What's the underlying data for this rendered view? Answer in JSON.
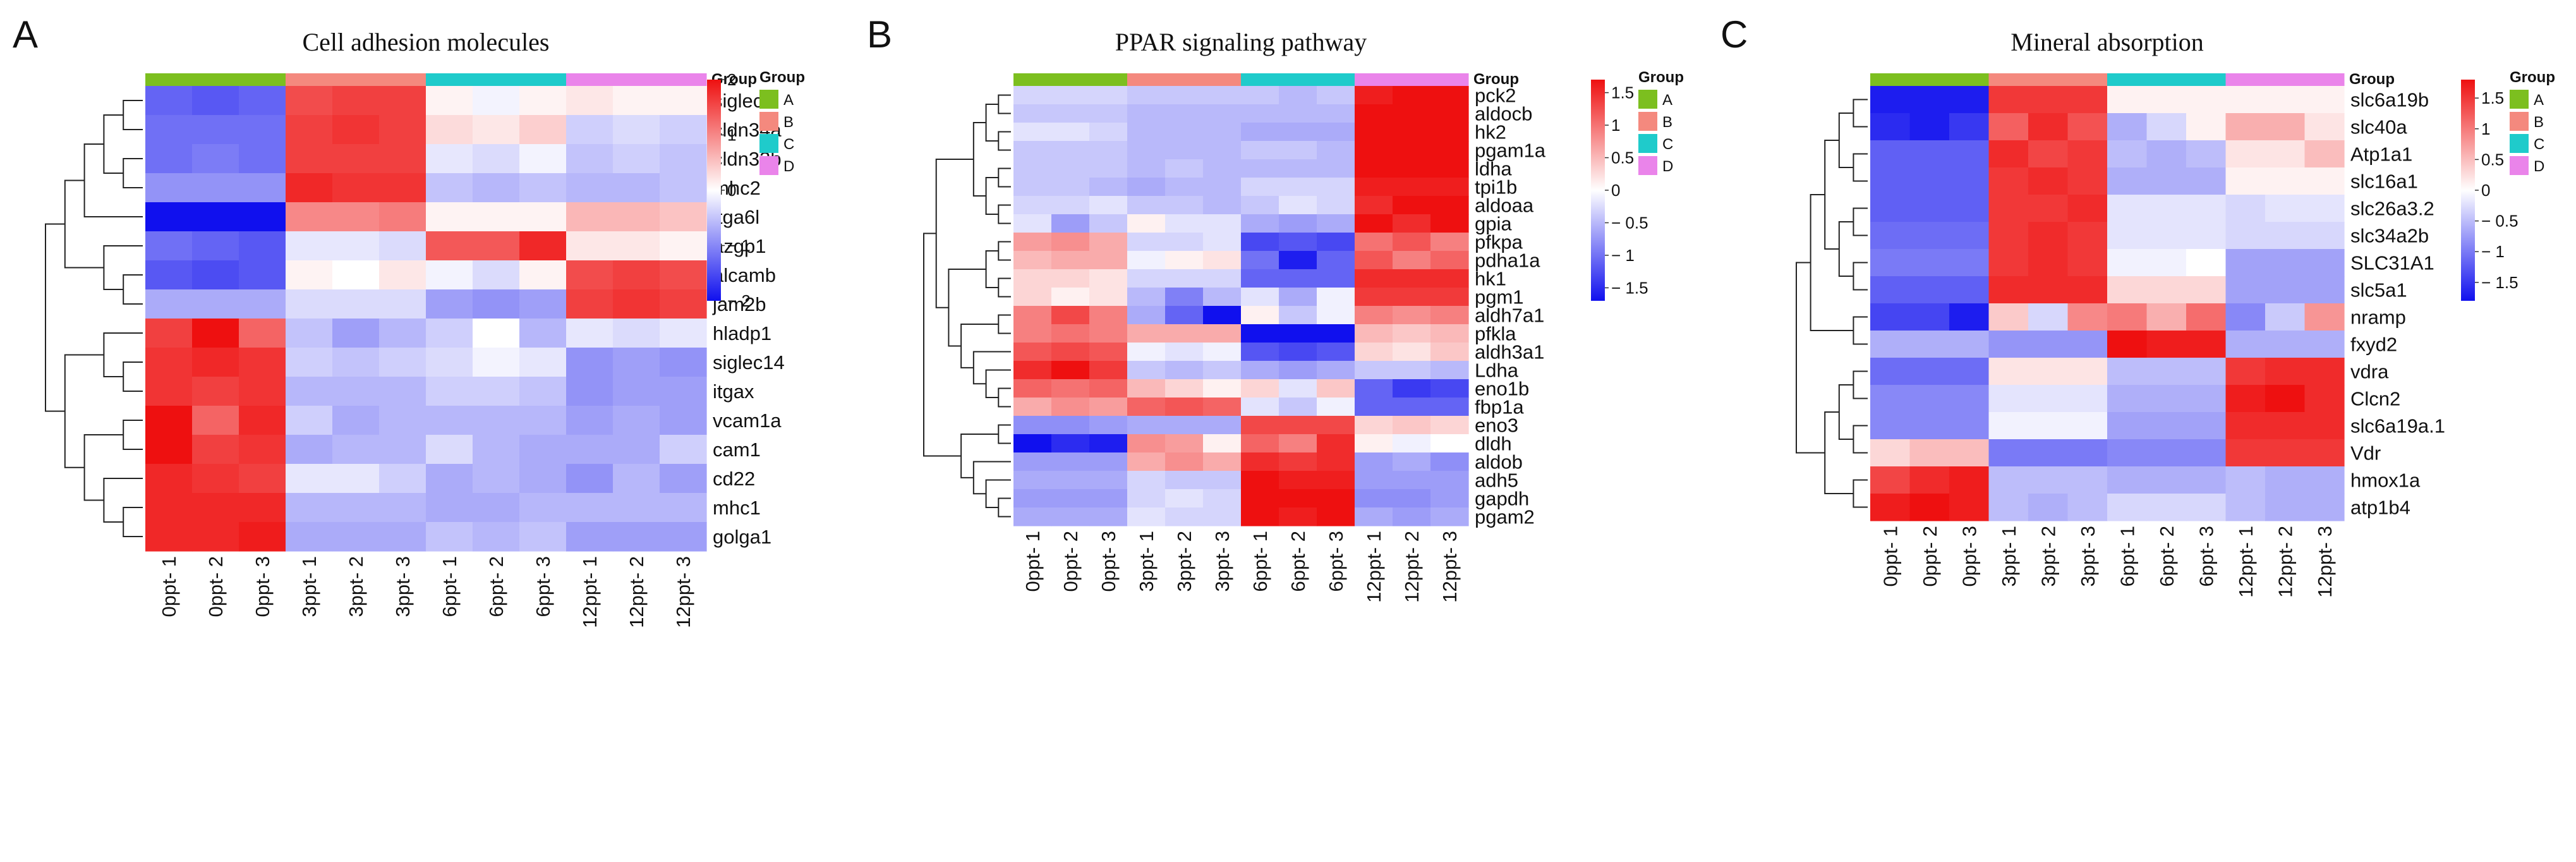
{
  "chart_data": [
    {
      "type": "heatmap",
      "panel": "A",
      "title": "Cell adhesion molecules",
      "columns": [
        "0ppt- 1",
        "0ppt- 2",
        "0ppt- 3",
        "3ppt- 1",
        "3ppt- 2",
        "3ppt- 3",
        "6ppt- 1",
        "6ppt- 2",
        "6ppt- 3",
        "12ppt- 1",
        "12ppt- 2",
        "12ppt- 3"
      ],
      "column_groups": [
        "A",
        "A",
        "A",
        "B",
        "B",
        "B",
        "C",
        "C",
        "C",
        "D",
        "D",
        "D"
      ],
      "group_bar_label": "Group",
      "rows": [
        "siglec1",
        "cldn34a",
        "cldn33b",
        "mhc2",
        "itga6l",
        "azgp1",
        "alcamb",
        "jam2b",
        "hladp1",
        "siglec14",
        "itgax",
        "vcam1a",
        "cam1",
        "cd22",
        "mhc1",
        "golga1"
      ],
      "values": [
        [
          -1.3,
          -1.4,
          -1.3,
          1.5,
          1.6,
          1.6,
          0.1,
          -0.1,
          0.1,
          0.2,
          0.1,
          0.1
        ],
        [
          -1.2,
          -1.2,
          -1.2,
          1.6,
          1.7,
          1.6,
          0.3,
          0.2,
          0.4,
          -0.4,
          -0.3,
          -0.4
        ],
        [
          -1.2,
          -1.1,
          -1.2,
          1.6,
          1.6,
          1.6,
          -0.2,
          -0.3,
          -0.1,
          -0.5,
          -0.4,
          -0.5
        ],
        [
          -0.9,
          -0.9,
          -0.9,
          1.8,
          1.7,
          1.7,
          -0.5,
          -0.6,
          -0.5,
          -0.6,
          -0.6,
          -0.5
        ],
        [
          -2.0,
          -2.0,
          -2.0,
          1.0,
          1.0,
          1.1,
          0.1,
          0.1,
          0.1,
          0.6,
          0.6,
          0.5
        ],
        [
          -1.2,
          -1.3,
          -1.4,
          -0.2,
          -0.2,
          -0.3,
          1.4,
          1.4,
          1.8,
          0.2,
          0.2,
          0.1
        ],
        [
          -1.4,
          -1.5,
          -1.4,
          0.1,
          0.0,
          0.2,
          -0.1,
          -0.3,
          0.1,
          1.5,
          1.6,
          1.5
        ],
        [
          -0.7,
          -0.7,
          -0.7,
          -0.3,
          -0.3,
          -0.3,
          -0.8,
          -0.9,
          -0.8,
          1.6,
          1.7,
          1.6
        ],
        [
          1.6,
          2.2,
          1.3,
          -0.5,
          -0.8,
          -0.6,
          -0.4,
          0.0,
          -0.6,
          -0.2,
          -0.3,
          -0.2
        ],
        [
          1.7,
          1.8,
          1.7,
          -0.4,
          -0.5,
          -0.4,
          -0.3,
          -0.1,
          -0.2,
          -0.9,
          -0.8,
          -0.9
        ],
        [
          1.7,
          1.6,
          1.7,
          -0.6,
          -0.6,
          -0.6,
          -0.4,
          -0.4,
          -0.5,
          -0.9,
          -0.8,
          -0.8
        ],
        [
          2.0,
          1.3,
          1.8,
          -0.4,
          -0.7,
          -0.6,
          -0.6,
          -0.6,
          -0.6,
          -0.8,
          -0.7,
          -0.8
        ],
        [
          2.2,
          1.6,
          1.7,
          -0.7,
          -0.6,
          -0.6,
          -0.3,
          -0.6,
          -0.7,
          -0.7,
          -0.7,
          -0.4
        ],
        [
          1.8,
          1.7,
          1.6,
          -0.2,
          -0.2,
          -0.4,
          -0.7,
          -0.6,
          -0.7,
          -0.9,
          -0.6,
          -0.8
        ],
        [
          1.8,
          1.8,
          1.8,
          -0.6,
          -0.6,
          -0.6,
          -0.7,
          -0.7,
          -0.6,
          -0.6,
          -0.6,
          -0.6
        ],
        [
          1.8,
          1.8,
          1.9,
          -0.7,
          -0.7,
          -0.7,
          -0.5,
          -0.6,
          -0.5,
          -0.8,
          -0.8,
          -0.8
        ]
      ],
      "color_scale": {
        "min": -2,
        "max": 2,
        "ticks": [
          2,
          1,
          0,
          -1,
          -2
        ],
        "tick_labels": [
          "2",
          "1",
          "0",
          "− 1",
          "− 2"
        ]
      }
    },
    {
      "type": "heatmap",
      "panel": "B",
      "title": "PPAR signaling pathway",
      "columns": [
        "0ppt- 1",
        "0ppt- 2",
        "0ppt- 3",
        "3ppt- 1",
        "3ppt- 2",
        "3ppt- 3",
        "6ppt- 1",
        "6ppt- 2",
        "6ppt- 3",
        "12ppt- 1",
        "12ppt- 2",
        "12ppt- 3"
      ],
      "column_groups": [
        "A",
        "A",
        "A",
        "B",
        "B",
        "B",
        "C",
        "C",
        "C",
        "D",
        "D",
        "D"
      ],
      "group_bar_label": "Group",
      "rows": [
        "pck2",
        "aldocb",
        "hk2",
        "pgam1a",
        "ldha",
        "tpi1b",
        "aldoaa",
        "gpia",
        "pfkpa",
        "pdha1a",
        "hk1",
        "pgm1",
        "aldh7a1",
        "pfkla",
        "aldh3a1",
        "Ldha",
        "eno1b",
        "fbp1a",
        "eno3",
        "dldh",
        "aldob",
        "adh5",
        "gapdh",
        "pgam2"
      ],
      "values": [
        [
          -0.3,
          -0.3,
          -0.3,
          -0.4,
          -0.4,
          -0.4,
          -0.4,
          -0.5,
          -0.4,
          1.6,
          1.7,
          1.7
        ],
        [
          -0.4,
          -0.4,
          -0.4,
          -0.5,
          -0.5,
          -0.5,
          -0.5,
          -0.5,
          -0.5,
          1.7,
          1.7,
          1.8
        ],
        [
          -0.2,
          -0.2,
          -0.3,
          -0.5,
          -0.5,
          -0.5,
          -0.6,
          -0.6,
          -0.6,
          1.7,
          1.7,
          1.7
        ],
        [
          -0.4,
          -0.4,
          -0.4,
          -0.5,
          -0.5,
          -0.5,
          -0.4,
          -0.4,
          -0.5,
          1.7,
          1.7,
          1.7
        ],
        [
          -0.4,
          -0.4,
          -0.4,
          -0.5,
          -0.4,
          -0.5,
          -0.5,
          -0.5,
          -0.5,
          1.7,
          1.7,
          1.7
        ],
        [
          -0.4,
          -0.4,
          -0.5,
          -0.6,
          -0.5,
          -0.5,
          -0.3,
          -0.3,
          -0.3,
          1.6,
          1.6,
          1.6
        ],
        [
          -0.3,
          -0.3,
          -0.2,
          -0.4,
          -0.4,
          -0.5,
          -0.4,
          -0.2,
          -0.3,
          1.5,
          1.7,
          1.7
        ],
        [
          -0.2,
          -0.7,
          -0.4,
          0.1,
          -0.2,
          -0.2,
          -0.6,
          -0.7,
          -0.6,
          1.9,
          1.5,
          1.7
        ],
        [
          0.7,
          0.8,
          0.6,
          -0.3,
          -0.3,
          -0.2,
          -1.3,
          -1.2,
          -1.3,
          1.0,
          1.2,
          0.9
        ],
        [
          0.5,
          0.6,
          0.6,
          -0.1,
          0.1,
          0.2,
          -1.0,
          -1.6,
          -1.1,
          1.2,
          0.9,
          1.1
        ],
        [
          0.3,
          0.3,
          0.2,
          -0.3,
          -0.3,
          -0.3,
          -1.1,
          -1.1,
          -1.1,
          1.5,
          1.5,
          1.5
        ],
        [
          0.3,
          0.1,
          0.2,
          -0.5,
          -0.9,
          -0.5,
          -0.2,
          -0.6,
          -0.1,
          1.4,
          1.4,
          1.4
        ],
        [
          0.9,
          1.3,
          0.9,
          -0.6,
          -1.1,
          -1.8,
          0.1,
          -0.4,
          -0.1,
          0.9,
          0.8,
          0.9
        ],
        [
          0.9,
          1.0,
          0.9,
          0.6,
          0.6,
          0.6,
          -1.8,
          -1.8,
          -1.9,
          0.5,
          0.4,
          0.5
        ],
        [
          1.2,
          1.3,
          1.2,
          -0.1,
          -0.2,
          -0.1,
          -1.2,
          -1.3,
          -1.2,
          0.3,
          0.2,
          0.4
        ],
        [
          1.5,
          1.8,
          1.4,
          -0.4,
          -0.5,
          -0.4,
          -0.6,
          -0.7,
          -0.6,
          -0.4,
          -0.4,
          -0.5
        ],
        [
          1.1,
          1.0,
          1.1,
          0.5,
          0.3,
          0.1,
          0.3,
          -0.2,
          0.4,
          -1.1,
          -1.4,
          -1.3
        ],
        [
          0.6,
          0.8,
          0.7,
          1.1,
          1.2,
          1.1,
          -0.2,
          -0.4,
          -0.1,
          -1.1,
          -1.1,
          -1.1
        ],
        [
          -0.8,
          -0.8,
          -0.7,
          -0.6,
          -0.6,
          -0.6,
          1.3,
          1.3,
          1.3,
          0.3,
          0.4,
          0.3
        ],
        [
          -1.8,
          -1.5,
          -1.6,
          0.8,
          0.7,
          0.1,
          1.1,
          0.9,
          1.5,
          0.1,
          -0.1,
          0.0
        ],
        [
          -0.7,
          -0.7,
          -0.7,
          0.6,
          0.8,
          0.6,
          1.5,
          1.4,
          1.5,
          -0.7,
          -0.6,
          -0.8
        ],
        [
          -0.6,
          -0.6,
          -0.6,
          -0.3,
          -0.4,
          -0.4,
          1.7,
          1.6,
          1.6,
          -0.7,
          -0.7,
          -0.7
        ],
        [
          -0.7,
          -0.7,
          -0.7,
          -0.3,
          -0.2,
          -0.3,
          1.7,
          1.7,
          1.7,
          -0.8,
          -0.8,
          -0.7
        ],
        [
          -0.6,
          -0.6,
          -0.6,
          -0.2,
          -0.3,
          -0.3,
          1.7,
          1.6,
          1.7,
          -0.6,
          -0.7,
          -0.6
        ]
      ],
      "color_scale": {
        "min": -1.7,
        "max": 1.7,
        "ticks": [
          1.5,
          1,
          0.5,
          0,
          -0.5,
          -1,
          -1.5
        ],
        "tick_labels": [
          "1.5",
          "1",
          "0.5",
          "0",
          "− 0.5",
          "− 1",
          "− 1.5"
        ]
      }
    },
    {
      "type": "heatmap",
      "panel": "C",
      "title": "Mineral absorption",
      "columns": [
        "0ppt- 1",
        "0ppt- 2",
        "0ppt- 3",
        "3ppt- 1",
        "3ppt- 2",
        "3ppt- 3",
        "6ppt- 1",
        "6ppt- 2",
        "6ppt- 3",
        "12ppt- 1",
        "12ppt- 2",
        "12ppt- 3"
      ],
      "column_groups": [
        "A",
        "A",
        "A",
        "B",
        "B",
        "B",
        "C",
        "C",
        "C",
        "D",
        "D",
        "D"
      ],
      "group_bar_label": "Group",
      "rows": [
        "slc6a19b",
        "slc40a",
        "Atp1a1",
        "slc16a1",
        "slc26a3.2",
        "slc34a2b",
        "SLC31A1",
        "slc5a1",
        "nramp",
        "fxyd2",
        "vdra",
        "Clcn2",
        "slc6a19a.1",
        "Vdr",
        "hmox1a",
        "atp1b4"
      ],
      "values": [
        [
          -1.7,
          -1.7,
          -1.7,
          1.5,
          1.5,
          1.5,
          0.1,
          0.1,
          0.1,
          0.1,
          0.1,
          0.1
        ],
        [
          -1.6,
          -1.7,
          -1.5,
          1.2,
          1.6,
          1.3,
          -0.6,
          -0.3,
          0.1,
          0.6,
          0.6,
          0.2
        ],
        [
          -1.2,
          -1.2,
          -1.2,
          1.6,
          1.4,
          1.5,
          -0.5,
          -0.6,
          -0.5,
          0.2,
          0.2,
          0.5
        ],
        [
          -1.2,
          -1.2,
          -1.2,
          1.5,
          1.6,
          1.5,
          -0.6,
          -0.6,
          -0.6,
          0.1,
          0.1,
          0.1
        ],
        [
          -1.2,
          -1.2,
          -1.2,
          1.5,
          1.5,
          1.6,
          -0.2,
          -0.2,
          -0.2,
          -0.3,
          -0.2,
          -0.2
        ],
        [
          -1.1,
          -1.1,
          -1.1,
          1.5,
          1.6,
          1.5,
          -0.2,
          -0.2,
          -0.2,
          -0.3,
          -0.3,
          -0.3
        ],
        [
          -1.0,
          -1.0,
          -1.0,
          1.5,
          1.6,
          1.5,
          -0.1,
          -0.1,
          0.0,
          -0.7,
          -0.7,
          -0.7
        ],
        [
          -1.2,
          -1.2,
          -1.2,
          1.6,
          1.6,
          1.6,
          0.3,
          0.3,
          0.3,
          -0.7,
          -0.7,
          -0.7
        ],
        [
          -1.4,
          -1.4,
          -1.7,
          0.4,
          -0.3,
          0.9,
          1.0,
          0.6,
          1.1,
          -0.9,
          -0.4,
          0.8
        ],
        [
          -0.6,
          -0.6,
          -0.6,
          -0.8,
          -0.8,
          -0.8,
          1.8,
          1.7,
          1.7,
          -0.6,
          -0.6,
          -0.6
        ],
        [
          -1.1,
          -1.1,
          -1.1,
          0.2,
          0.2,
          0.2,
          -0.5,
          -0.5,
          -0.5,
          1.5,
          1.6,
          1.6
        ],
        [
          -0.9,
          -0.9,
          -0.9,
          -0.2,
          -0.2,
          -0.2,
          -0.6,
          -0.6,
          -0.6,
          1.7,
          1.8,
          1.6
        ],
        [
          -0.9,
          -0.9,
          -0.9,
          -0.1,
          -0.1,
          -0.1,
          -0.7,
          -0.7,
          -0.7,
          1.6,
          1.6,
          1.6
        ],
        [
          0.3,
          0.5,
          0.5,
          -1.0,
          -1.0,
          -1.0,
          -0.9,
          -0.9,
          -0.9,
          1.5,
          1.5,
          1.5
        ],
        [
          1.4,
          1.6,
          1.7,
          -0.5,
          -0.5,
          -0.5,
          -0.6,
          -0.6,
          -0.6,
          -0.5,
          -0.6,
          -0.6
        ],
        [
          1.7,
          1.8,
          1.7,
          -0.5,
          -0.6,
          -0.5,
          -0.3,
          -0.3,
          -0.3,
          -0.5,
          -0.6,
          -0.6
        ]
      ],
      "color_scale": {
        "min": -1.8,
        "max": 1.8,
        "ticks": [
          1.5,
          1,
          0.5,
          0,
          -0.5,
          -1,
          -1.5
        ],
        "tick_labels": [
          "1.5",
          "1",
          "0.5",
          "0",
          "− 0.5",
          "− 1",
          "− 1.5"
        ]
      }
    }
  ],
  "legend": {
    "title": "Group",
    "items": [
      {
        "label": "A",
        "color": "#7cbf1f"
      },
      {
        "label": "B",
        "color": "#f4897e"
      },
      {
        "label": "C",
        "color": "#1fcbcb"
      },
      {
        "label": "D",
        "color": "#ea84ea"
      }
    ]
  },
  "colors": {
    "low": "#1010ee",
    "mid": "#ffffff",
    "high": "#ee1010"
  }
}
